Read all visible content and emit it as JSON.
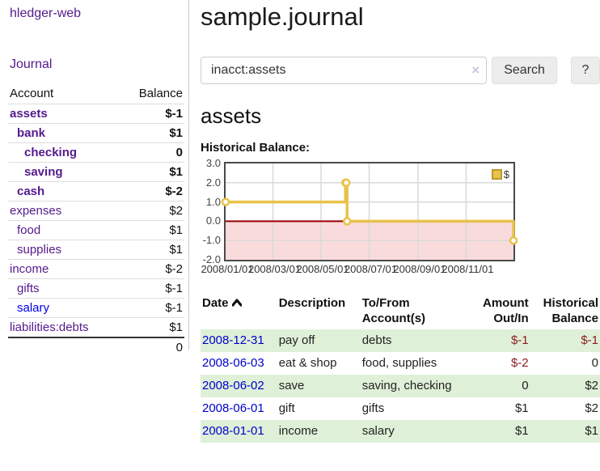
{
  "brand": "hledger-web",
  "nav": {
    "journal_label": "Journal"
  },
  "sidebar_table": {
    "account_header": "Account",
    "balance_header": "Balance",
    "accounts": [
      {
        "name": "assets",
        "depth": 0,
        "balance": "$-1",
        "bold": true,
        "neg": "strong"
      },
      {
        "name": "bank",
        "depth": 1,
        "balance": "$1",
        "bold": true,
        "neg": "none"
      },
      {
        "name": "checking",
        "depth": 2,
        "balance": "0",
        "bold": true,
        "neg": "none"
      },
      {
        "name": "saving",
        "depth": 2,
        "balance": "$1",
        "bold": true,
        "neg": "none"
      },
      {
        "name": "cash",
        "depth": 1,
        "balance": "$-2",
        "bold": true,
        "neg": "strong"
      },
      {
        "name": "expenses",
        "depth": 0,
        "balance": "$2",
        "bold": false,
        "neg": "none"
      },
      {
        "name": "food",
        "depth": 1,
        "balance": "$1",
        "bold": false,
        "neg": "none"
      },
      {
        "name": "supplies",
        "depth": 1,
        "balance": "$1",
        "bold": false,
        "neg": "none"
      },
      {
        "name": "income",
        "depth": 0,
        "balance": "$-2",
        "bold": false,
        "neg": "soft"
      },
      {
        "name": "gifts",
        "depth": 1,
        "balance": "$-1",
        "bold": false,
        "neg": "soft"
      },
      {
        "name": "salary",
        "depth": 1,
        "balance": "$-1",
        "bold": false,
        "neg": "soft",
        "link_color": "blue"
      },
      {
        "name": "liabilities:debts",
        "depth": 0,
        "balance": "$1",
        "bold": false,
        "neg": "none"
      }
    ],
    "total": "0"
  },
  "header": {
    "title": "sample.journal"
  },
  "search": {
    "value": "inacct:assets",
    "clear_icon": "×",
    "button_label": "Search",
    "help_label": "?"
  },
  "account_page": {
    "heading": "assets",
    "chart_label": "Historical Balance:"
  },
  "chart_data": {
    "type": "line",
    "step": true,
    "title": "Historical Balance",
    "x_start": "2008-01-01",
    "total_days": 365,
    "ylim": [
      -2,
      3
    ],
    "yticks": [
      "3.0",
      "2.0",
      "1.0",
      "0.0",
      "-1.0",
      "-2.0"
    ],
    "xticks": [
      "2008/01/01",
      "2008/03/01",
      "2008/05/01",
      "2008/07/01",
      "2008/09/01",
      "2008/11/01"
    ],
    "series": [
      {
        "name": "$",
        "color": "#e8c24a",
        "points": [
          {
            "date": "2008-01-01",
            "value": 1
          },
          {
            "date": "2008-06-01",
            "value": 2
          },
          {
            "date": "2008-06-02",
            "value": 2
          },
          {
            "date": "2008-06-03",
            "value": 0
          },
          {
            "date": "2008-12-31",
            "value": -1
          }
        ]
      }
    ],
    "legend": {
      "label": "$",
      "position": "top-right"
    },
    "grid": true,
    "colors": {
      "negative_region": "#fadbdc",
      "zero_line": "#990000",
      "grid_line": "#d9d9d9",
      "border": "#4a4a4a"
    }
  },
  "register_table": {
    "headers": {
      "date": "Date",
      "description": "Description",
      "accounts": "To/From Account(s)",
      "amount": "Amount Out/In",
      "balance": "Historical Balance"
    },
    "sort": {
      "column": "date",
      "direction": "asc"
    },
    "rows": [
      {
        "date": "2008-12-31",
        "description": "pay off",
        "accounts": "debts",
        "amount": "$-1",
        "amount_neg": true,
        "balance": "$-1",
        "balance_neg": true
      },
      {
        "date": "2008-06-03",
        "description": "eat & shop",
        "accounts": "food, supplies",
        "amount": "$-2",
        "amount_neg": true,
        "balance": "0",
        "balance_neg": false
      },
      {
        "date": "2008-06-02",
        "description": "save",
        "accounts": "saving, checking",
        "amount": "0",
        "amount_neg": false,
        "balance": "$2",
        "balance_neg": false
      },
      {
        "date": "2008-06-01",
        "description": "gift",
        "accounts": "gifts",
        "amount": "$1",
        "amount_neg": false,
        "balance": "$2",
        "balance_neg": false
      },
      {
        "date": "2008-01-01",
        "description": "income",
        "accounts": "salary",
        "amount": "$1",
        "amount_neg": false,
        "balance": "$1",
        "balance_neg": false
      }
    ]
  }
}
